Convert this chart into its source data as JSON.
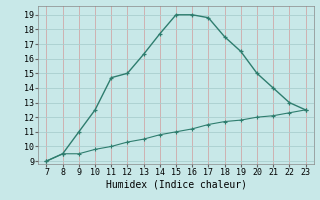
{
  "upper_x": [
    7,
    8,
    9,
    10,
    11,
    12,
    13,
    14,
    15,
    16,
    17,
    18,
    19,
    20,
    21,
    22,
    23
  ],
  "upper_y": [
    9.0,
    9.5,
    11.0,
    12.5,
    14.7,
    15.0,
    16.3,
    17.7,
    19.0,
    19.0,
    18.8,
    17.5,
    16.5,
    15.0,
    14.0,
    13.0,
    12.5
  ],
  "lower_x": [
    7,
    8,
    9,
    10,
    11,
    12,
    13,
    14,
    15,
    16,
    17,
    18,
    19,
    20,
    21,
    22,
    23
  ],
  "lower_y": [
    9.0,
    9.5,
    9.5,
    9.8,
    10.0,
    10.3,
    10.5,
    10.8,
    11.0,
    11.2,
    11.5,
    11.7,
    11.8,
    12.0,
    12.1,
    12.3,
    12.5
  ],
  "line_color": "#2e7d6e",
  "bg_color": "#c8e8e8",
  "grid_color": "#aacece",
  "red_grid_color": "#d0a8a8",
  "xlabel": "Humidex (Indice chaleur)",
  "xlim": [
    6.5,
    23.5
  ],
  "ylim": [
    8.8,
    19.6
  ],
  "xticks": [
    7,
    8,
    9,
    10,
    11,
    12,
    13,
    14,
    15,
    16,
    17,
    18,
    19,
    20,
    21,
    22,
    23
  ],
  "yticks": [
    9,
    10,
    11,
    12,
    13,
    14,
    15,
    16,
    17,
    18,
    19
  ],
  "tick_fontsize": 6.0,
  "xlabel_fontsize": 7.0
}
